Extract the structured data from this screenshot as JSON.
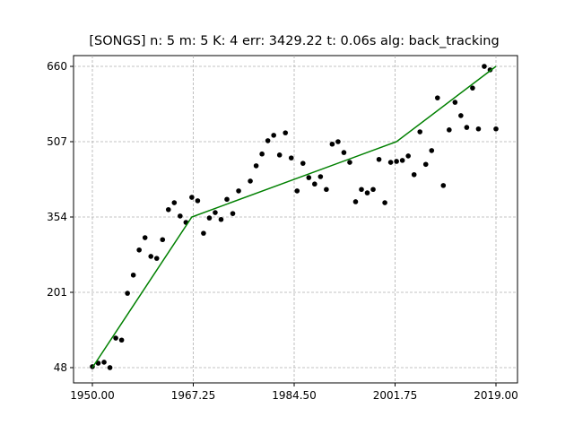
{
  "chart_data": {
    "type": "scatter",
    "title": "[SONGS] n: 5 m: 5 K: 4 err: 3429.22 t: 0.06s alg: back_tracking",
    "xlim": [
      1946.78,
      2022.68
    ],
    "ylim": [
      17,
      681.9
    ],
    "xticks": [
      {
        "value": 1950,
        "label": "1950.00"
      },
      {
        "value": 1967.25,
        "label": "1967.25"
      },
      {
        "value": 1984.5,
        "label": "1984.50"
      },
      {
        "value": 2001.75,
        "label": "2001.75"
      },
      {
        "value": 2019,
        "label": "2019.00"
      }
    ],
    "yticks": [
      48,
      201,
      354,
      507,
      660
    ],
    "grid": true,
    "series": [
      {
        "type": "scatter",
        "color": "#000000",
        "x": [
          1950,
          1951,
          1952,
          1953,
          1954,
          1955,
          1956,
          1957,
          1958,
          1959,
          1960,
          1961,
          1962,
          1963,
          1964,
          1965,
          1966,
          1967,
          1968,
          1969,
          1970,
          1971,
          1972,
          1973,
          1974,
          1975,
          1977,
          1978,
          1979,
          1980,
          1981,
          1982,
          1983,
          1984,
          1985,
          1986,
          1987,
          1988,
          1989,
          1990,
          1991,
          1992,
          1993,
          1994,
          1995,
          1996,
          1997,
          1998,
          1999,
          2000,
          2001,
          2002,
          2003,
          2004,
          2005,
          2006,
          2007,
          2008,
          2009,
          2010,
          2011,
          2012,
          2013,
          2014,
          2015,
          2016,
          2017,
          2018,
          2019
        ],
        "values": [
          50,
          57,
          59,
          48,
          108,
          104,
          199,
          236,
          287,
          312,
          274,
          270,
          308,
          369,
          383,
          356,
          343,
          394,
          387,
          321,
          352,
          363,
          349,
          390,
          361,
          407,
          427,
          458,
          482,
          509,
          520,
          480,
          525,
          474,
          407,
          463,
          434,
          421,
          436,
          410,
          502,
          507,
          485,
          465,
          385,
          410,
          403,
          410,
          471,
          383,
          465,
          467,
          469,
          478,
          440,
          527,
          461,
          489,
          596,
          418,
          531,
          587,
          560,
          536,
          616,
          533,
          660,
          653,
          533
        ]
      },
      {
        "type": "line",
        "color": "#008000",
        "x": [
          1950,
          1967,
          2002,
          2019
        ],
        "values": [
          48,
          354,
          507,
          660
        ]
      }
    ]
  }
}
